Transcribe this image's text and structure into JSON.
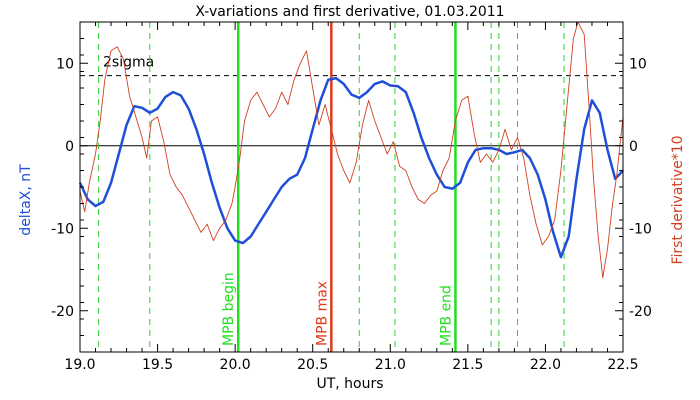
{
  "chart_data": {
    "type": "line",
    "title": "X-variations and first derivative, 01.03.2011",
    "xlabel": "UT, hours",
    "ylabel_left": "deltaX, nT",
    "ylabel_right": "First derivative*10",
    "xlim": [
      19.0,
      22.5
    ],
    "ylim": [
      -25,
      15
    ],
    "x_ticks": [
      19.0,
      19.5,
      20.0,
      20.5,
      21.0,
      21.5,
      22.0,
      22.5
    ],
    "x_tick_labels": [
      "19.0",
      "19.5",
      "20.0",
      "20.5",
      "21.0",
      "21.5",
      "22.0",
      "22.5"
    ],
    "y_ticks": [
      -20,
      -10,
      0,
      10
    ],
    "y_tick_labels": [
      "-20",
      "-10",
      "0",
      "10"
    ],
    "grid": false,
    "threshold": {
      "label": "2sigma",
      "value": 8.5
    },
    "zero_line": 0,
    "markers": {
      "minor_x": [
        19.12,
        19.45,
        20.8,
        21.03,
        21.65,
        21.7,
        21.82,
        22.12
      ],
      "events": [
        {
          "label": "MPB begin",
          "x": 20.02
        },
        {
          "label": "MPB max",
          "x": 20.62
        },
        {
          "label": "MPB end",
          "x": 21.42
        }
      ]
    },
    "series": [
      {
        "name": "deltaX",
        "color": "#1f4fd8",
        "points": [
          [
            19.0,
            -4.5
          ],
          [
            19.05,
            -6.5
          ],
          [
            19.1,
            -7.3
          ],
          [
            19.15,
            -6.8
          ],
          [
            19.2,
            -4.5
          ],
          [
            19.25,
            -1.0
          ],
          [
            19.3,
            2.5
          ],
          [
            19.35,
            4.8
          ],
          [
            19.4,
            4.6
          ],
          [
            19.45,
            4.0
          ],
          [
            19.5,
            4.5
          ],
          [
            19.55,
            5.9
          ],
          [
            19.6,
            6.5
          ],
          [
            19.65,
            6.1
          ],
          [
            19.7,
            4.5
          ],
          [
            19.75,
            2.0
          ],
          [
            19.8,
            -1.0
          ],
          [
            19.85,
            -4.5
          ],
          [
            19.9,
            -7.5
          ],
          [
            19.95,
            -10.0
          ],
          [
            20.0,
            -11.5
          ],
          [
            20.05,
            -11.8
          ],
          [
            20.1,
            -11.0
          ],
          [
            20.15,
            -9.5
          ],
          [
            20.2,
            -8.0
          ],
          [
            20.25,
            -6.5
          ],
          [
            20.3,
            -5.0
          ],
          [
            20.35,
            -4.0
          ],
          [
            20.4,
            -3.5
          ],
          [
            20.45,
            -1.5
          ],
          [
            20.5,
            2.0
          ],
          [
            20.55,
            5.5
          ],
          [
            20.6,
            8.0
          ],
          [
            20.65,
            8.2
          ],
          [
            20.7,
            7.5
          ],
          [
            20.75,
            6.2
          ],
          [
            20.8,
            5.8
          ],
          [
            20.85,
            6.5
          ],
          [
            20.9,
            7.5
          ],
          [
            20.95,
            7.8
          ],
          [
            21.0,
            7.3
          ],
          [
            21.05,
            7.2
          ],
          [
            21.1,
            6.5
          ],
          [
            21.15,
            4.0
          ],
          [
            21.2,
            1.0
          ],
          [
            21.25,
            -1.5
          ],
          [
            21.3,
            -3.5
          ],
          [
            21.35,
            -5.0
          ],
          [
            21.4,
            -5.2
          ],
          [
            21.45,
            -4.5
          ],
          [
            21.5,
            -2.0
          ],
          [
            21.55,
            -0.5
          ],
          [
            21.6,
            -0.3
          ],
          [
            21.65,
            -0.3
          ],
          [
            21.7,
            -0.5
          ],
          [
            21.75,
            -1.0
          ],
          [
            21.8,
            -0.8
          ],
          [
            21.85,
            -0.5
          ],
          [
            21.9,
            -1.5
          ],
          [
            21.95,
            -3.5
          ],
          [
            22.0,
            -6.5
          ],
          [
            22.05,
            -10.5
          ],
          [
            22.1,
            -13.5
          ],
          [
            22.15,
            -11.0
          ],
          [
            22.2,
            -4.0
          ],
          [
            22.25,
            2.0
          ],
          [
            22.3,
            5.5
          ],
          [
            22.35,
            4.0
          ],
          [
            22.4,
            -0.5
          ],
          [
            22.45,
            -4.0
          ],
          [
            22.5,
            -3.0
          ]
        ]
      },
      {
        "name": "First derivative*10",
        "color": "#d04020",
        "points": [
          [
            19.0,
            -5.5
          ],
          [
            19.03,
            -8.0
          ],
          [
            19.06,
            -4.5
          ],
          [
            19.1,
            -1.0
          ],
          [
            19.13,
            3.0
          ],
          [
            19.16,
            8.0
          ],
          [
            19.2,
            11.5
          ],
          [
            19.24,
            12.0
          ],
          [
            19.28,
            10.5
          ],
          [
            19.32,
            6.0
          ],
          [
            19.36,
            3.5
          ],
          [
            19.4,
            1.0
          ],
          [
            19.43,
            -1.5
          ],
          [
            19.46,
            3.0
          ],
          [
            19.5,
            3.5
          ],
          [
            19.54,
            0.5
          ],
          [
            19.58,
            -3.5
          ],
          [
            19.62,
            -5.0
          ],
          [
            19.66,
            -6.0
          ],
          [
            19.7,
            -7.5
          ],
          [
            19.74,
            -9.0
          ],
          [
            19.78,
            -10.5
          ],
          [
            19.82,
            -9.5
          ],
          [
            19.86,
            -11.5
          ],
          [
            19.9,
            -10.0
          ],
          [
            19.94,
            -9.0
          ],
          [
            19.98,
            -7.0
          ],
          [
            20.0,
            -5.0
          ],
          [
            20.03,
            -1.5
          ],
          [
            20.06,
            3.0
          ],
          [
            20.1,
            5.5
          ],
          [
            20.14,
            6.5
          ],
          [
            20.18,
            5.0
          ],
          [
            20.22,
            3.5
          ],
          [
            20.26,
            4.5
          ],
          [
            20.3,
            6.5
          ],
          [
            20.34,
            5.0
          ],
          [
            20.38,
            8.0
          ],
          [
            20.42,
            10.0
          ],
          [
            20.46,
            11.5
          ],
          [
            20.5,
            7.0
          ],
          [
            20.54,
            2.5
          ],
          [
            20.58,
            5.0
          ],
          [
            20.62,
            2.0
          ],
          [
            20.66,
            -1.0
          ],
          [
            20.7,
            -3.0
          ],
          [
            20.74,
            -4.5
          ],
          [
            20.78,
            -2.0
          ],
          [
            20.82,
            2.5
          ],
          [
            20.86,
            5.5
          ],
          [
            20.9,
            3.0
          ],
          [
            20.94,
            1.0
          ],
          [
            20.98,
            -1.0
          ],
          [
            21.02,
            0.5
          ],
          [
            21.06,
            -2.5
          ],
          [
            21.1,
            -3.0
          ],
          [
            21.14,
            -5.0
          ],
          [
            21.18,
            -6.5
          ],
          [
            21.22,
            -7.0
          ],
          [
            21.26,
            -6.0
          ],
          [
            21.3,
            -5.5
          ],
          [
            21.34,
            -3.0
          ],
          [
            21.38,
            -1.5
          ],
          [
            21.42,
            3.0
          ],
          [
            21.46,
            5.5
          ],
          [
            21.5,
            6.0
          ],
          [
            21.54,
            1.5
          ],
          [
            21.58,
            -2.0
          ],
          [
            21.62,
            -1.0
          ],
          [
            21.66,
            -2.0
          ],
          [
            21.7,
            -0.5
          ],
          [
            21.74,
            2.0
          ],
          [
            21.78,
            -0.5
          ],
          [
            21.82,
            1.0
          ],
          [
            21.86,
            -1.5
          ],
          [
            21.9,
            -6.0
          ],
          [
            21.94,
            -9.5
          ],
          [
            21.98,
            -12.0
          ],
          [
            22.02,
            -11.0
          ],
          [
            22.06,
            -9.0
          ],
          [
            22.1,
            -3.0
          ],
          [
            22.14,
            5.0
          ],
          [
            22.18,
            13.0
          ],
          [
            22.21,
            15.0
          ],
          [
            22.25,
            13.5
          ],
          [
            22.28,
            5.0
          ],
          [
            22.31,
            -4.0
          ],
          [
            22.34,
            -11.0
          ],
          [
            22.37,
            -16.0
          ],
          [
            22.4,
            -12.5
          ],
          [
            22.43,
            -7.5
          ],
          [
            22.46,
            -3.5
          ],
          [
            22.5,
            3.5
          ]
        ]
      }
    ]
  }
}
